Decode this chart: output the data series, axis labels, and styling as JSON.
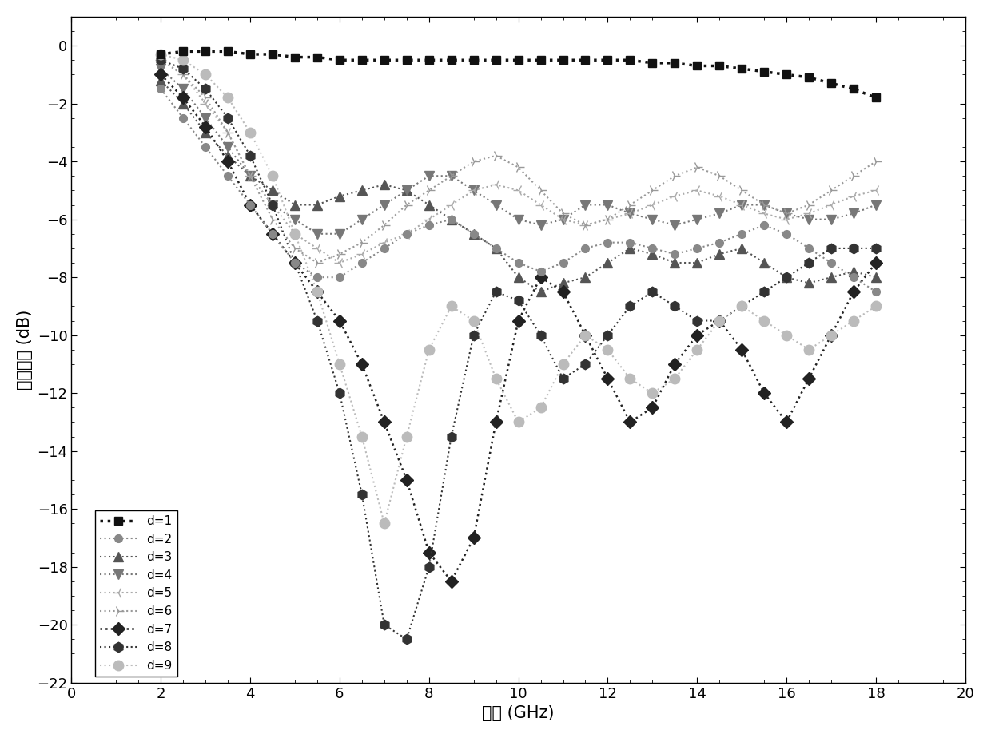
{
  "xlabel": "频率 (GHz)",
  "ylabel": "回波损失 (dB)",
  "xlim": [
    0,
    20
  ],
  "ylim": [
    -22,
    1
  ],
  "xticks": [
    0,
    2,
    4,
    6,
    8,
    10,
    12,
    14,
    16,
    18,
    20
  ],
  "yticks": [
    0,
    -2,
    -4,
    -6,
    -8,
    -10,
    -12,
    -14,
    -16,
    -18,
    -20,
    -22
  ],
  "series": [
    {
      "label": "d=1",
      "color": "#111111",
      "marker": "s",
      "markersize": 7,
      "linewidth": 2.5,
      "linestyle": ":",
      "x": [
        2.0,
        2.5,
        3.0,
        3.5,
        4.0,
        4.5,
        5.0,
        5.5,
        6.0,
        6.5,
        7.0,
        7.5,
        8.0,
        8.5,
        9.0,
        9.5,
        10.0,
        10.5,
        11.0,
        11.5,
        12.0,
        12.5,
        13.0,
        13.5,
        14.0,
        14.5,
        15.0,
        15.5,
        16.0,
        16.5,
        17.0,
        17.5,
        18.0
      ],
      "y": [
        -0.3,
        -0.2,
        -0.2,
        -0.2,
        -0.3,
        -0.3,
        -0.4,
        -0.4,
        -0.5,
        -0.5,
        -0.5,
        -0.5,
        -0.5,
        -0.5,
        -0.5,
        -0.5,
        -0.5,
        -0.5,
        -0.5,
        -0.5,
        -0.5,
        -0.5,
        -0.6,
        -0.6,
        -0.7,
        -0.7,
        -0.8,
        -0.9,
        -1.0,
        -1.1,
        -1.3,
        -1.5,
        -1.8
      ]
    },
    {
      "label": "d=2",
      "color": "#888888",
      "marker": "o",
      "markersize": 7,
      "linewidth": 1.5,
      "linestyle": ":",
      "x": [
        2.0,
        2.5,
        3.0,
        3.5,
        4.0,
        4.5,
        5.0,
        5.5,
        6.0,
        6.5,
        7.0,
        7.5,
        8.0,
        8.5,
        9.0,
        9.5,
        10.0,
        10.5,
        11.0,
        11.5,
        12.0,
        12.5,
        13.0,
        13.5,
        14.0,
        14.5,
        15.0,
        15.5,
        16.0,
        16.5,
        17.0,
        17.5,
        18.0
      ],
      "y": [
        -1.5,
        -2.5,
        -3.5,
        -4.5,
        -5.5,
        -6.5,
        -7.5,
        -8.0,
        -8.0,
        -7.5,
        -7.0,
        -6.5,
        -6.2,
        -6.0,
        -6.5,
        -7.0,
        -7.5,
        -7.8,
        -7.5,
        -7.0,
        -6.8,
        -6.8,
        -7.0,
        -7.2,
        -7.0,
        -6.8,
        -6.5,
        -6.2,
        -6.5,
        -7.0,
        -7.5,
        -8.0,
        -8.5
      ]
    },
    {
      "label": "d=3",
      "color": "#555555",
      "marker": "^",
      "markersize": 8,
      "linewidth": 1.5,
      "linestyle": ":",
      "x": [
        2.0,
        2.5,
        3.0,
        3.5,
        4.0,
        4.5,
        5.0,
        5.5,
        6.0,
        6.5,
        7.0,
        7.5,
        8.0,
        8.5,
        9.0,
        9.5,
        10.0,
        10.5,
        11.0,
        11.5,
        12.0,
        12.5,
        13.0,
        13.5,
        14.0,
        14.5,
        15.0,
        15.5,
        16.0,
        16.5,
        17.0,
        17.5,
        18.0
      ],
      "y": [
        -1.2,
        -2.0,
        -3.0,
        -3.8,
        -4.5,
        -5.0,
        -5.5,
        -5.5,
        -5.2,
        -5.0,
        -4.8,
        -5.0,
        -5.5,
        -6.0,
        -6.5,
        -7.0,
        -8.0,
        -8.5,
        -8.2,
        -8.0,
        -7.5,
        -7.0,
        -7.2,
        -7.5,
        -7.5,
        -7.2,
        -7.0,
        -7.5,
        -8.0,
        -8.2,
        -8.0,
        -7.8,
        -8.0
      ]
    },
    {
      "label": "d=4",
      "color": "#777777",
      "marker": "v",
      "markersize": 8,
      "linewidth": 1.5,
      "linestyle": ":",
      "x": [
        2.0,
        2.5,
        3.0,
        3.5,
        4.0,
        4.5,
        5.0,
        5.5,
        6.0,
        6.5,
        7.0,
        7.5,
        8.0,
        8.5,
        9.0,
        9.5,
        10.0,
        10.5,
        11.0,
        11.5,
        12.0,
        12.5,
        13.0,
        13.5,
        14.0,
        14.5,
        15.0,
        15.5,
        16.0,
        16.5,
        17.0,
        17.5,
        18.0
      ],
      "y": [
        -0.8,
        -1.5,
        -2.5,
        -3.5,
        -4.5,
        -5.5,
        -6.0,
        -6.5,
        -6.5,
        -6.0,
        -5.5,
        -5.0,
        -4.5,
        -4.5,
        -5.0,
        -5.5,
        -6.0,
        -6.2,
        -6.0,
        -5.5,
        -5.5,
        -5.8,
        -6.0,
        -6.2,
        -6.0,
        -5.8,
        -5.5,
        -5.5,
        -5.8,
        -6.0,
        -6.0,
        -5.8,
        -5.5
      ]
    },
    {
      "label": "d=5",
      "color": "#aaaaaa",
      "marker": "3",
      "markersize": 10,
      "linewidth": 1.5,
      "linestyle": ":",
      "x": [
        2.0,
        2.5,
        3.0,
        3.5,
        4.0,
        4.5,
        5.0,
        5.5,
        6.0,
        6.5,
        7.0,
        7.5,
        8.0,
        8.5,
        9.0,
        9.5,
        10.0,
        10.5,
        11.0,
        11.5,
        12.0,
        12.5,
        13.0,
        13.5,
        14.0,
        14.5,
        15.0,
        15.5,
        16.0,
        16.5,
        17.0,
        17.5,
        18.0
      ],
      "y": [
        -0.5,
        -1.0,
        -2.0,
        -3.0,
        -4.5,
        -5.5,
        -6.5,
        -7.0,
        -7.5,
        -7.2,
        -6.8,
        -6.5,
        -6.0,
        -5.5,
        -5.0,
        -4.8,
        -5.0,
        -5.5,
        -6.0,
        -6.2,
        -6.0,
        -5.8,
        -5.5,
        -5.2,
        -5.0,
        -5.2,
        -5.5,
        -5.8,
        -6.0,
        -5.8,
        -5.5,
        -5.2,
        -5.0
      ]
    },
    {
      "label": "d=6",
      "color": "#999999",
      "marker": "4",
      "markersize": 10,
      "linewidth": 1.5,
      "linestyle": ":",
      "x": [
        2.0,
        2.5,
        3.0,
        3.5,
        4.0,
        4.5,
        5.0,
        5.5,
        6.0,
        6.5,
        7.0,
        7.5,
        8.0,
        8.5,
        9.0,
        9.5,
        10.0,
        10.5,
        11.0,
        11.5,
        12.0,
        12.5,
        13.0,
        13.5,
        14.0,
        14.5,
        15.0,
        15.5,
        16.0,
        16.5,
        17.0,
        17.5,
        18.0
      ],
      "y": [
        -0.5,
        -1.0,
        -1.8,
        -3.0,
        -4.5,
        -6.0,
        -7.0,
        -7.5,
        -7.2,
        -6.8,
        -6.2,
        -5.5,
        -5.0,
        -4.5,
        -4.0,
        -3.8,
        -4.2,
        -5.0,
        -5.8,
        -6.2,
        -6.0,
        -5.5,
        -5.0,
        -4.5,
        -4.2,
        -4.5,
        -5.0,
        -5.5,
        -5.8,
        -5.5,
        -5.0,
        -4.5,
        -4.0
      ]
    },
    {
      "label": "d=7",
      "color": "#222222",
      "marker": "D",
      "markersize": 8,
      "linewidth": 1.8,
      "linestyle": ":",
      "x": [
        2.0,
        2.5,
        3.0,
        3.5,
        4.0,
        4.5,
        5.0,
        5.5,
        6.0,
        6.5,
        7.0,
        7.5,
        8.0,
        8.5,
        9.0,
        9.5,
        10.0,
        10.5,
        11.0,
        11.5,
        12.0,
        12.5,
        13.0,
        13.5,
        14.0,
        14.5,
        15.0,
        15.5,
        16.0,
        16.5,
        17.0,
        17.5,
        18.0
      ],
      "y": [
        -1.0,
        -1.8,
        -2.8,
        -4.0,
        -5.5,
        -6.5,
        -7.5,
        -8.5,
        -9.5,
        -11.0,
        -13.0,
        -15.0,
        -17.5,
        -18.5,
        -17.0,
        -13.0,
        -9.5,
        -8.0,
        -8.5,
        -10.0,
        -11.5,
        -13.0,
        -12.5,
        -11.0,
        -10.0,
        -9.5,
        -10.5,
        -12.0,
        -13.0,
        -11.5,
        -10.0,
        -8.5,
        -7.5
      ]
    },
    {
      "label": "d=8",
      "color": "#333333",
      "marker": "h",
      "markersize": 9,
      "linewidth": 1.5,
      "linestyle": ":",
      "x": [
        2.0,
        2.5,
        3.0,
        3.5,
        4.0,
        4.5,
        5.0,
        5.5,
        6.0,
        6.5,
        7.0,
        7.5,
        8.0,
        8.5,
        9.0,
        9.5,
        10.0,
        10.5,
        11.0,
        11.5,
        12.0,
        12.5,
        13.0,
        13.5,
        14.0,
        14.5,
        15.0,
        15.5,
        16.0,
        16.5,
        17.0,
        17.5,
        18.0
      ],
      "y": [
        -0.5,
        -0.8,
        -1.5,
        -2.5,
        -3.8,
        -5.5,
        -7.5,
        -9.5,
        -12.0,
        -15.5,
        -20.0,
        -20.5,
        -18.0,
        -13.5,
        -10.0,
        -8.5,
        -8.8,
        -10.0,
        -11.5,
        -11.0,
        -10.0,
        -9.0,
        -8.5,
        -9.0,
        -9.5,
        -9.5,
        -9.0,
        -8.5,
        -8.0,
        -7.5,
        -7.0,
        -7.0,
        -7.0
      ]
    },
    {
      "label": "d=9",
      "color": "#bbbbbb",
      "marker": "o",
      "markersize": 9,
      "linewidth": 1.5,
      "linestyle": ":",
      "x": [
        2.0,
        2.5,
        3.0,
        3.5,
        4.0,
        4.5,
        5.0,
        5.5,
        6.0,
        6.5,
        7.0,
        7.5,
        8.0,
        8.5,
        9.0,
        9.5,
        10.0,
        10.5,
        11.0,
        11.5,
        12.0,
        12.5,
        13.0,
        13.5,
        14.0,
        14.5,
        15.0,
        15.5,
        16.0,
        16.5,
        17.0,
        17.5,
        18.0
      ],
      "y": [
        -0.3,
        -0.5,
        -1.0,
        -1.8,
        -3.0,
        -4.5,
        -6.5,
        -8.5,
        -11.0,
        -13.5,
        -16.5,
        -13.5,
        -10.5,
        -9.0,
        -9.5,
        -11.5,
        -13.0,
        -12.5,
        -11.0,
        -10.0,
        -10.5,
        -11.5,
        -12.0,
        -11.5,
        -10.5,
        -9.5,
        -9.0,
        -9.5,
        -10.0,
        -10.5,
        -10.0,
        -9.5,
        -9.0
      ]
    }
  ],
  "background_color": "#ffffff",
  "legend_loc": "lower left",
  "fontsize_label": 15,
  "fontsize_tick": 13,
  "fontsize_legend": 11
}
